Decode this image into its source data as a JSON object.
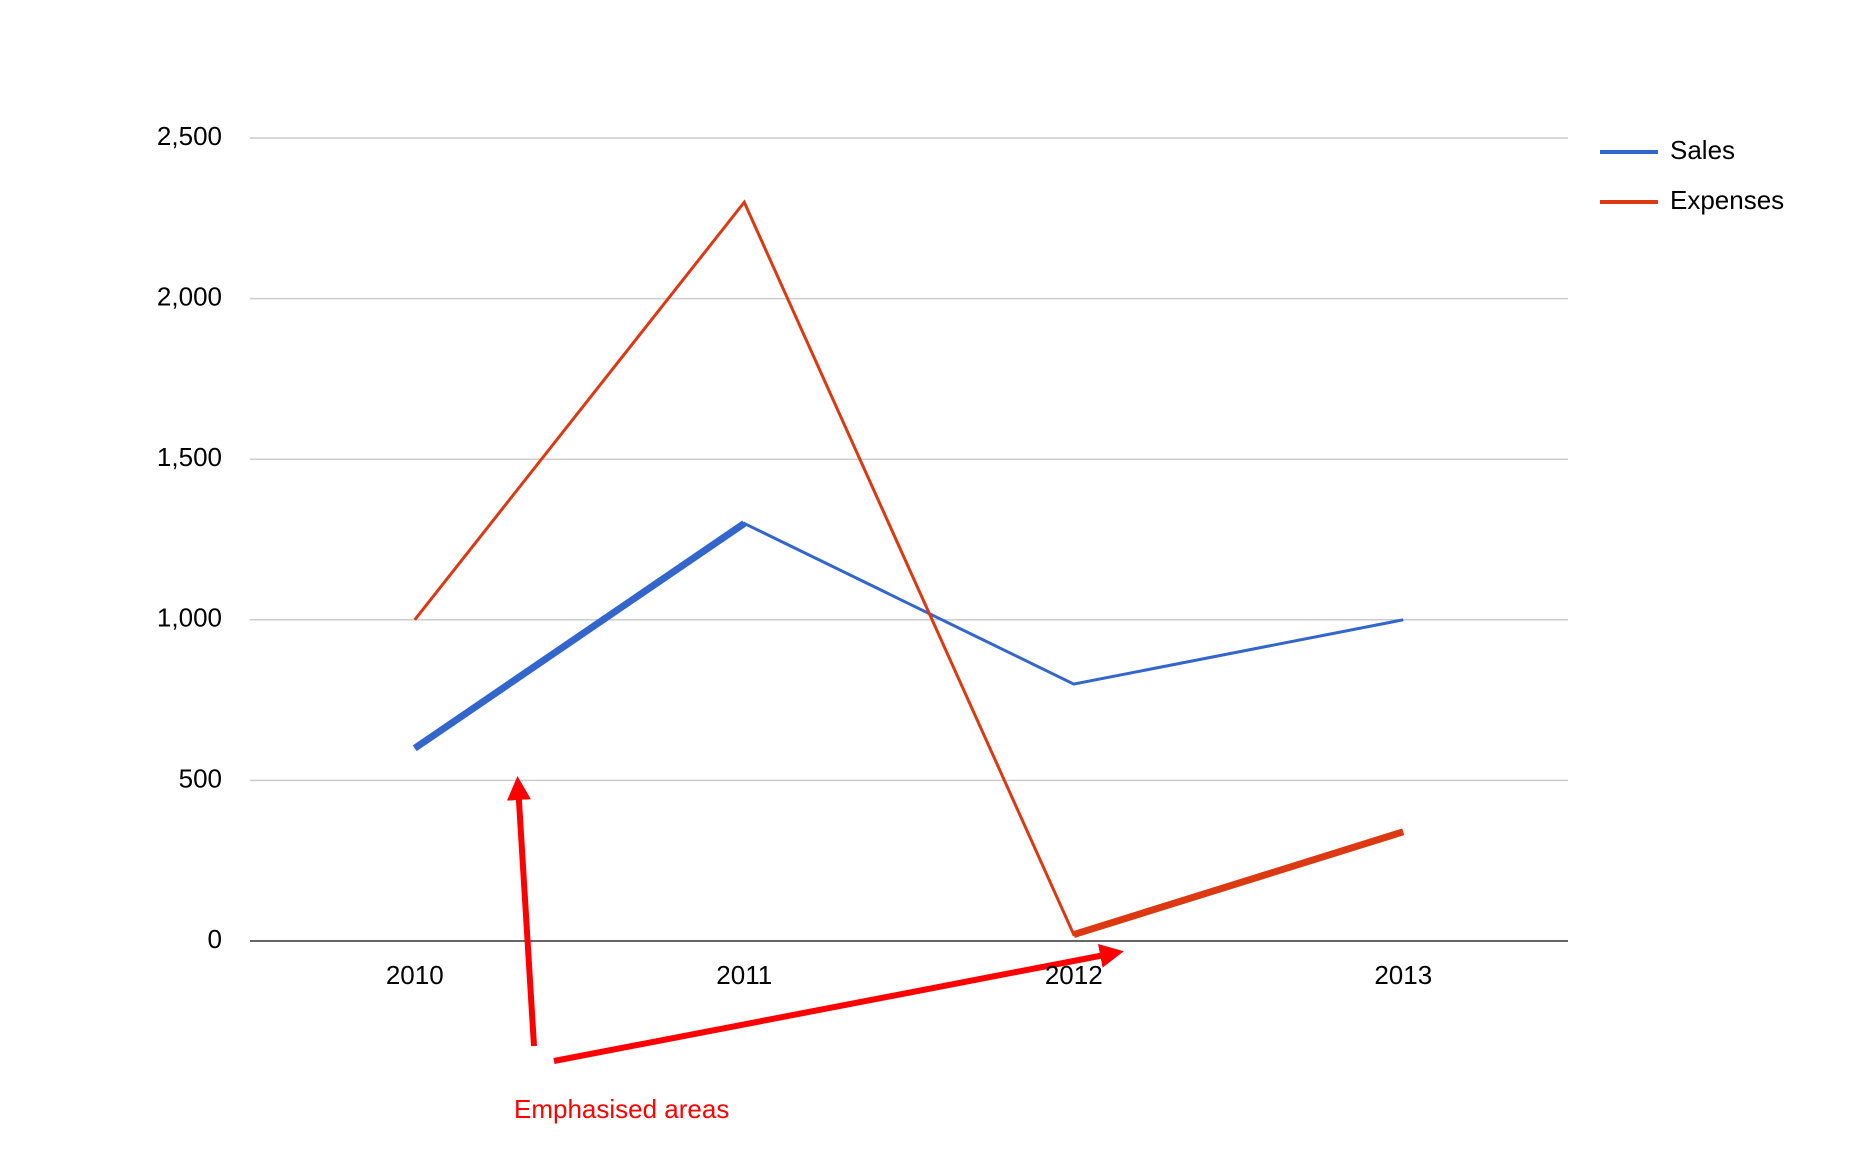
{
  "chart_data": {
    "type": "line",
    "categories": [
      "2010",
      "2011",
      "2012",
      "2013"
    ],
    "series": [
      {
        "name": "Sales",
        "color": "#3366cc",
        "values": [
          600,
          1300,
          800,
          1000
        ],
        "emphasized_segment": [
          0,
          1
        ]
      },
      {
        "name": "Expenses",
        "color": "#dc3912",
        "values": [
          1000,
          2300,
          20,
          340
        ],
        "emphasized_segment": [
          2,
          3
        ]
      }
    ],
    "ylim": [
      0,
      2500
    ],
    "yticks": [
      0,
      500,
      {
        "value": 1000,
        "label": "1,000"
      },
      {
        "value": 1500,
        "label": "1,500"
      },
      {
        "value": 2000,
        "label": "2,000"
      },
      {
        "value": 2500,
        "label": "2,500"
      }
    ],
    "grid": true,
    "legend": "right",
    "annotation": "Emphasised areas"
  }
}
